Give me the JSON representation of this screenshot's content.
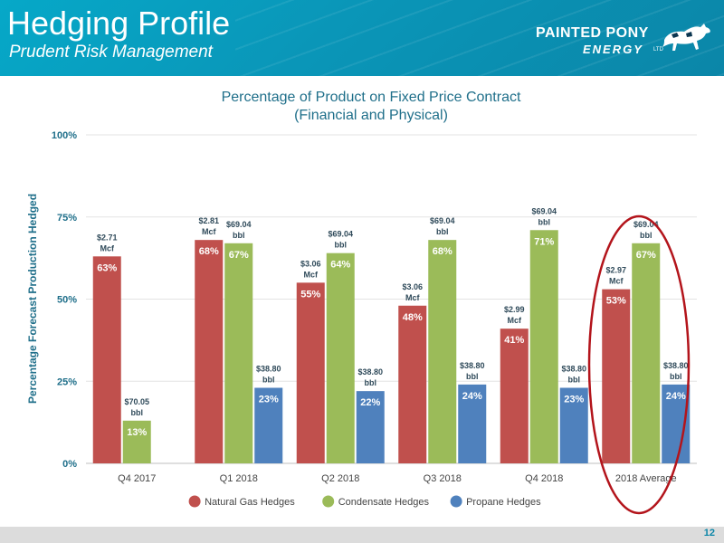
{
  "header": {
    "title": "Hedging Profile",
    "subtitle": "Prudent Risk Management",
    "logo_line1": "PAINTED PONY",
    "logo_line2": "ENERGY",
    "logo_suffix": "LTD"
  },
  "page_number": "12",
  "colors": {
    "header": "#0a96b8",
    "natural_gas": "#c0504d",
    "condensate": "#9bbb59",
    "propane": "#4f81bd",
    "axis_text": "#1f6f8a",
    "highlight_oval": "#b3141b"
  },
  "chart_data": {
    "type": "bar",
    "title": "Percentage of Product on Fixed Price Contract",
    "subtitle": "(Financial and Physical)",
    "ylabel": "Percentage Forecast Production Hedged",
    "xlabel": "",
    "ylim": [
      0,
      100
    ],
    "yticks": [
      "0%",
      "25%",
      "50%",
      "75%",
      "100%"
    ],
    "grid": true,
    "legend_position": "bottom",
    "categories": [
      "Q4 2017",
      "Q1 2018",
      "Q2 2018",
      "Q3 2018",
      "Q4 2018",
      "2018 Average"
    ],
    "series": [
      {
        "name": "Natural Gas Hedges",
        "values": [
          63,
          68,
          55,
          48,
          41,
          53
        ],
        "labels": [
          "63%",
          "68%",
          "55%",
          "48%",
          "41%",
          "53%"
        ],
        "price_labels": [
          [
            "$2.71",
            "Mcf"
          ],
          [
            "$2.81",
            "Mcf"
          ],
          [
            "$3.06",
            "Mcf"
          ],
          [
            "$3.06",
            "Mcf"
          ],
          [
            "$2.99",
            "Mcf"
          ],
          [
            "$2.97",
            "Mcf"
          ]
        ]
      },
      {
        "name": "Condensate Hedges",
        "values": [
          13,
          67,
          64,
          68,
          71,
          67
        ],
        "labels": [
          "13%",
          "67%",
          "64%",
          "68%",
          "71%",
          "67%"
        ],
        "price_labels": [
          [
            "$70.05",
            "bbl"
          ],
          [
            "$69.04",
            "bbl"
          ],
          [
            "$69.04",
            "bbl"
          ],
          [
            "$69.04",
            "bbl"
          ],
          [
            "$69.04",
            "bbl"
          ],
          [
            "$69.04",
            "bbl"
          ]
        ]
      },
      {
        "name": "Propane Hedges",
        "values": [
          null,
          23,
          22,
          24,
          23,
          24
        ],
        "labels": [
          null,
          "23%",
          "22%",
          "24%",
          "23%",
          "24%"
        ],
        "price_labels": [
          null,
          [
            "$38.80",
            "bbl"
          ],
          [
            "$38.80",
            "bbl"
          ],
          [
            "$38.80",
            "bbl"
          ],
          [
            "$38.80",
            "bbl"
          ],
          [
            "$38.80",
            "bbl"
          ]
        ]
      }
    ],
    "annotations": [
      "2018 Average highlighted with red oval"
    ]
  }
}
